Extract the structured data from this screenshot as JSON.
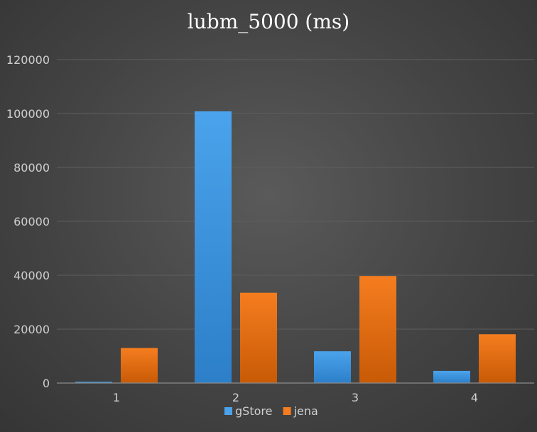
{
  "chart_data": {
    "type": "bar",
    "title": "lubm_5000 (ms)",
    "xlabel": "",
    "ylabel": "",
    "categories": [
      "1",
      "2",
      "3",
      "4"
    ],
    "series": [
      {
        "name": "gStore",
        "values": [
          500,
          100800,
          11800,
          4500
        ]
      },
      {
        "name": "jena",
        "values": [
          13000,
          33500,
          39700,
          18100
        ]
      }
    ],
    "ylim": [
      0,
      120000
    ],
    "yticks": [
      "0",
      "20000",
      "40000",
      "60000",
      "80000",
      "100000",
      "120000"
    ],
    "grid": true,
    "legend_position": "bottom-center",
    "colors": {
      "gStore": [
        "#4aa3ec",
        "#2c7fc8"
      ],
      "jena": [
        "#f57d1f",
        "#c85a06"
      ],
      "gridline": "#5e5e5e",
      "axis": "#8a8a8a"
    }
  }
}
